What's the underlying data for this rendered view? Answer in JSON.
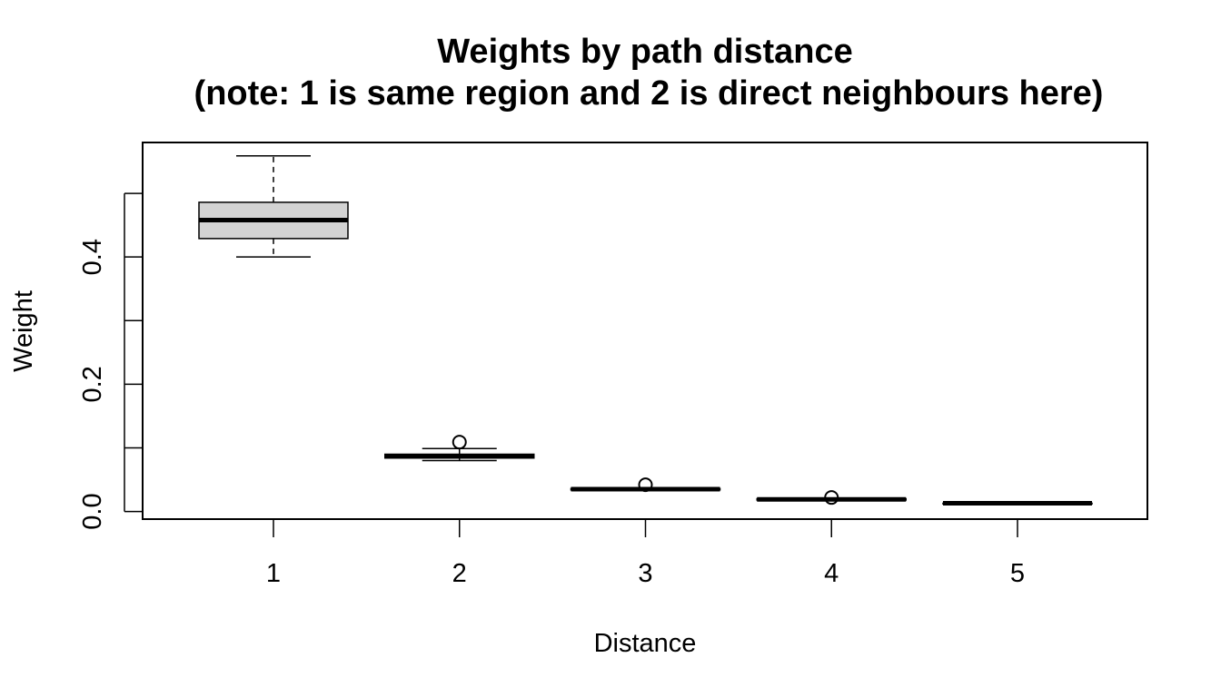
{
  "chart_data": {
    "type": "boxplot",
    "title": "Weights by path distance",
    "subtitle": "(note: 1 is same region and 2 is direct neighbours here)",
    "xlabel": "Distance",
    "ylabel": "Weight",
    "categories": [
      "1",
      "2",
      "3",
      "4",
      "5"
    ],
    "yticks": [
      0.0,
      0.1,
      0.2,
      0.3,
      0.4,
      0.5
    ],
    "ytick_labels": [
      "0.0",
      "",
      "0.2",
      "",
      "0.4",
      ""
    ],
    "ylim": [
      -0.012,
      0.58
    ],
    "grid": false,
    "box_fill": "#d3d3d3",
    "line_color": "#000000",
    "boxes": [
      {
        "category": "1",
        "min": 0.4,
        "q1": 0.429,
        "median": 0.458,
        "q3": 0.486,
        "max": 0.559,
        "outliers": []
      },
      {
        "category": "2",
        "min": 0.08,
        "q1": 0.084,
        "median": 0.087,
        "q3": 0.09,
        "max": 0.099,
        "outliers": [
          0.109
        ]
      },
      {
        "category": "3",
        "min": 0.033,
        "q1": 0.034,
        "median": 0.035,
        "q3": 0.036,
        "max": 0.037,
        "outliers": [
          0.042
        ]
      },
      {
        "category": "4",
        "min": 0.018,
        "q1": 0.018,
        "median": 0.019,
        "q3": 0.02,
        "max": 0.02,
        "outliers": [
          0.022
        ]
      },
      {
        "category": "5",
        "min": 0.012,
        "q1": 0.012,
        "median": 0.013,
        "q3": 0.013,
        "max": 0.013,
        "outliers": []
      }
    ]
  }
}
